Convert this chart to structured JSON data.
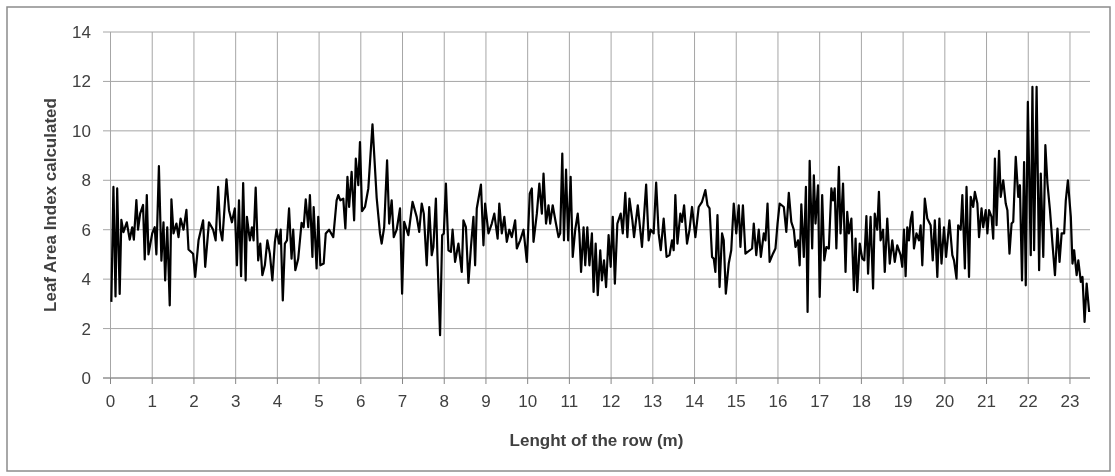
{
  "chart_data": {
    "type": "line",
    "xlabel": "Lenght of the row (m)",
    "ylabel": "Leaf Area Index calculated",
    "xlim": [
      -0.18,
      23.48
    ],
    "xticks": [
      0,
      1,
      2,
      3,
      4,
      5,
      6,
      7,
      8,
      9,
      10,
      11,
      12,
      13,
      14,
      15,
      16,
      17,
      18,
      19,
      20,
      21,
      22,
      23
    ],
    "ylim": [
      0,
      14
    ],
    "yticks": [
      0,
      2,
      4,
      6,
      8,
      10,
      12,
      14
    ],
    "grid": true,
    "marker": "none",
    "line_style": "solid",
    "series": [
      {
        "color": "#000000",
        "x": [
          0.02,
          0.07,
          0.12,
          0.16,
          0.22,
          0.26,
          0.31,
          0.39,
          0.46,
          0.52,
          0.56,
          0.62,
          0.66,
          0.71,
          0.78,
          0.82,
          0.87,
          0.91,
          1.0,
          1.06,
          1.1,
          1.16,
          1.22,
          1.27,
          1.31,
          1.36,
          1.42,
          1.46,
          1.51,
          1.58,
          1.63,
          1.68,
          1.75,
          1.82,
          1.87,
          1.98,
          2.03,
          2.11,
          2.22,
          2.27,
          2.36,
          2.46,
          2.52,
          2.58,
          2.63,
          2.68,
          2.78,
          2.84,
          2.91,
          2.98,
          3.03,
          3.08,
          3.13,
          3.18,
          3.24,
          3.27,
          3.34,
          3.39,
          3.43,
          3.48,
          3.54,
          3.59,
          3.64,
          3.7,
          3.76,
          3.82,
          3.88,
          3.94,
          3.98,
          4.04,
          4.08,
          4.13,
          4.18,
          4.23,
          4.28,
          4.34,
          4.38,
          4.43,
          4.5,
          4.58,
          4.63,
          4.68,
          4.74,
          4.78,
          4.84,
          4.87,
          4.94,
          4.98,
          5.03,
          5.11,
          5.16,
          5.24,
          5.34,
          5.42,
          5.46,
          5.51,
          5.58,
          5.63,
          5.68,
          5.72,
          5.78,
          5.84,
          5.88,
          5.94,
          5.98,
          6.03,
          6.1,
          6.18,
          6.28,
          6.38,
          6.46,
          6.5,
          6.56,
          6.63,
          6.68,
          6.74,
          6.79,
          6.86,
          6.94,
          6.99,
          7.04,
          7.14,
          7.24,
          7.34,
          7.4,
          7.46,
          7.51,
          7.58,
          7.64,
          7.7,
          7.74,
          7.8,
          7.84,
          7.9,
          7.95,
          7.99,
          8.04,
          8.1,
          8.16,
          8.2,
          8.26,
          8.34,
          8.42,
          8.46,
          8.52,
          8.58,
          8.64,
          8.7,
          8.74,
          8.78,
          8.88,
          8.94,
          8.98,
          9.06,
          9.14,
          9.2,
          9.28,
          9.32,
          9.38,
          9.44,
          9.5,
          9.56,
          9.62,
          9.7,
          9.74,
          9.82,
          9.9,
          9.98,
          10.05,
          10.1,
          10.14,
          10.22,
          10.28,
          10.34,
          10.38,
          10.44,
          10.5,
          10.54,
          10.6,
          10.67,
          10.74,
          10.78,
          10.83,
          10.87,
          10.92,
          10.97,
          11.03,
          11.08,
          11.14,
          11.2,
          11.24,
          11.28,
          11.34,
          11.38,
          11.43,
          11.48,
          11.54,
          11.58,
          11.63,
          11.68,
          11.74,
          11.78,
          11.83,
          11.88,
          11.94,
          11.99,
          12.04,
          12.09,
          12.15,
          12.23,
          12.28,
          12.34,
          12.39,
          12.44,
          12.51,
          12.55,
          12.64,
          12.74,
          12.84,
          12.9,
          12.95,
          13.02,
          13.08,
          13.14,
          13.19,
          13.26,
          13.33,
          13.4,
          13.46,
          13.5,
          13.54,
          13.59,
          13.66,
          13.7,
          13.75,
          13.82,
          13.88,
          13.94,
          14.02,
          14.1,
          14.18,
          14.26,
          14.31,
          14.36,
          14.42,
          14.46,
          14.5,
          14.55,
          14.6,
          14.66,
          14.7,
          14.75,
          14.82,
          14.88,
          14.94,
          15.0,
          15.06,
          15.1,
          15.16,
          15.22,
          15.38,
          15.42,
          15.48,
          15.54,
          15.59,
          15.66,
          15.7,
          15.75,
          15.8,
          15.88,
          15.94,
          15.99,
          16.04,
          16.14,
          16.2,
          16.26,
          16.32,
          16.38,
          16.42,
          16.48,
          16.52,
          16.56,
          16.62,
          16.67,
          16.71,
          16.76,
          16.82,
          16.86,
          16.9,
          16.96,
          17.0,
          17.06,
          17.11,
          17.16,
          17.22,
          17.28,
          17.32,
          17.36,
          17.4,
          17.46,
          17.5,
          17.56,
          17.62,
          17.66,
          17.7,
          17.76,
          17.82,
          17.86,
          17.9,
          17.96,
          18.02,
          18.07,
          18.12,
          18.16,
          18.22,
          18.28,
          18.32,
          18.38,
          18.42,
          18.46,
          18.52,
          18.56,
          18.62,
          18.68,
          18.74,
          18.8,
          18.86,
          18.94,
          18.98,
          19.02,
          19.06,
          19.1,
          19.14,
          19.18,
          19.22,
          19.26,
          19.32,
          19.38,
          19.42,
          19.46,
          19.52,
          19.58,
          19.66,
          19.71,
          19.76,
          19.82,
          19.87,
          19.92,
          19.98,
          20.03,
          20.11,
          20.18,
          20.22,
          20.28,
          20.32,
          20.38,
          20.42,
          20.48,
          20.52,
          20.58,
          20.62,
          20.68,
          20.72,
          20.78,
          20.82,
          20.88,
          20.92,
          20.98,
          21.02,
          21.06,
          21.12,
          21.16,
          21.2,
          21.24,
          21.3,
          21.34,
          21.4,
          21.46,
          21.5,
          21.55,
          21.6,
          21.64,
          21.7,
          21.76,
          21.8,
          21.85,
          21.9,
          21.94,
          21.99,
          22.06,
          22.1,
          22.14,
          22.2,
          22.26,
          22.3,
          22.36,
          22.41,
          22.46,
          22.52,
          22.58,
          22.64,
          22.7,
          22.75,
          22.8,
          22.86,
          22.9,
          22.95,
          23.02,
          23.06,
          23.1,
          23.16,
          23.2,
          23.26,
          23.3,
          23.35,
          23.4,
          23.46
        ],
        "values": [
          3.08,
          7.73,
          3.3,
          7.67,
          3.4,
          6.4,
          5.9,
          6.3,
          5.6,
          6.1,
          5.6,
          7.2,
          6.0,
          6.65,
          7.0,
          4.8,
          7.4,
          5.0,
          5.85,
          6.1,
          5.0,
          8.57,
          4.75,
          6.3,
          3.95,
          6.1,
          2.94,
          7.23,
          5.85,
          6.25,
          5.7,
          6.45,
          6.0,
          6.8,
          5.2,
          5.03,
          4.09,
          5.57,
          6.38,
          4.5,
          6.3,
          6.0,
          5.57,
          7.73,
          6.0,
          5.57,
          8.04,
          6.79,
          6.3,
          6.86,
          4.56,
          7.19,
          4.12,
          7.89,
          3.95,
          6.52,
          5.57,
          6.1,
          5.57,
          7.7,
          4.76,
          5.44,
          4.16,
          4.56,
          5.57,
          5.03,
          3.95,
          5.5,
          6.0,
          5.44,
          6.0,
          3.14,
          5.44,
          5.57,
          6.86,
          4.83,
          6.0,
          4.36,
          4.83,
          6.28,
          6.1,
          7.23,
          6.1,
          7.4,
          4.9,
          6.92,
          4.43,
          6.52,
          4.56,
          4.63,
          5.85,
          6.0,
          5.7,
          7.19,
          7.4,
          7.19,
          7.26,
          6.05,
          8.14,
          6.92,
          8.34,
          6.38,
          8.88,
          7.8,
          9.55,
          6.75,
          6.92,
          7.67,
          10.26,
          7.3,
          5.85,
          5.44,
          6.1,
          8.81,
          6.25,
          7.19,
          5.7,
          6.0,
          6.86,
          3.41,
          6.32,
          5.78,
          7.13,
          6.52,
          5.91,
          7.06,
          6.65,
          4.56,
          6.92,
          4.97,
          5.3,
          7.26,
          4.76,
          1.73,
          5.78,
          5.85,
          7.87,
          5.17,
          5.1,
          6.0,
          4.7,
          5.44,
          4.29,
          6.38,
          6.1,
          3.85,
          5.3,
          6.52,
          4.56,
          6.86,
          7.83,
          5.37,
          7.06,
          5.85,
          6.25,
          6.65,
          5.64,
          7.06,
          5.85,
          6.52,
          5.51,
          6.0,
          5.7,
          6.38,
          5.24,
          5.57,
          6.0,
          4.7,
          7.46,
          7.67,
          5.51,
          6.65,
          7.87,
          6.65,
          8.27,
          6.25,
          6.99,
          6.25,
          6.99,
          6.32,
          5.7,
          5.85,
          9.08,
          5.57,
          8.43,
          5.57,
          8.14,
          4.9,
          6.0,
          6.65,
          5.85,
          4.29,
          6.1,
          4.56,
          6.1,
          4.56,
          5.85,
          3.48,
          5.44,
          3.35,
          5.17,
          3.95,
          4.76,
          3.68,
          5.78,
          4.5,
          6.52,
          3.82,
          6.25,
          6.65,
          5.85,
          7.49,
          5.7,
          7.26,
          6.38,
          5.7,
          6.99,
          5.3,
          7.83,
          5.57,
          6.0,
          5.85,
          7.91,
          5.85,
          5.17,
          6.45,
          4.9,
          4.97,
          5.57,
          5.17,
          7.4,
          5.44,
          6.65,
          6.32,
          6.99,
          5.44,
          6.0,
          6.92,
          5.7,
          6.92,
          7.13,
          7.6,
          6.99,
          6.86,
          4.9,
          4.83,
          4.29,
          6.59,
          3.68,
          5.85,
          5.57,
          3.41,
          4.63,
          5.17,
          7.06,
          5.85,
          6.99,
          5.3,
          6.99,
          5.03,
          5.24,
          6.25,
          4.97,
          6.0,
          4.9,
          5.85,
          5.57,
          7.06,
          4.7,
          5.03,
          5.24,
          6.25,
          7.06,
          6.92,
          5.91,
          7.49,
          6.32,
          6.0,
          5.3,
          5.57,
          4.56,
          7.03,
          4.9,
          7.73,
          2.67,
          8.79,
          5.24,
          8.2,
          6.25,
          7.8,
          3.28,
          7.4,
          4.76,
          5.3,
          5.24,
          7.67,
          7.19,
          7.67,
          5.24,
          8.54,
          5.85,
          7.87,
          4.29,
          6.72,
          5.85,
          6.45,
          3.55,
          5.64,
          3.48,
          5.44,
          4.83,
          4.76,
          6.55,
          4.22,
          6.52,
          3.62,
          6.65,
          6.0,
          7.53,
          5.57,
          6.0,
          4.29,
          6.45,
          4.63,
          5.57,
          4.7,
          5.37,
          4.97,
          4.5,
          6.0,
          4.12,
          6.1,
          5.57,
          6.38,
          6.72,
          5.24,
          5.85,
          5.57,
          6.18,
          4.56,
          7.26,
          6.45,
          6.18,
          4.76,
          6.38,
          4.09,
          6.45,
          4.63,
          6.1,
          4.9,
          6.38,
          4.97,
          4.76,
          4.02,
          6.18,
          6.0,
          7.4,
          4.43,
          7.73,
          4.09,
          7.33,
          6.92,
          7.53,
          7.06,
          5.7,
          6.86,
          6.1,
          6.79,
          5.85,
          6.79,
          6.52,
          5.64,
          8.88,
          6.18,
          9.19,
          7.33,
          8.0,
          7.06,
          6.79,
          5.03,
          6.25,
          6.32,
          8.95,
          7.33,
          7.8,
          3.95,
          8.74,
          3.75,
          11.17,
          4.97,
          11.78,
          5.17,
          11.78,
          4.36,
          8.27,
          4.9,
          9.42,
          7.87,
          6.79,
          5.44,
          4.16,
          6.05,
          4.7,
          5.85,
          5.85,
          7.19,
          8.0,
          6.52,
          4.63,
          5.17,
          4.16,
          4.76,
          3.89,
          4.09,
          2.27,
          3.82,
          2.67
        ]
      }
    ]
  }
}
